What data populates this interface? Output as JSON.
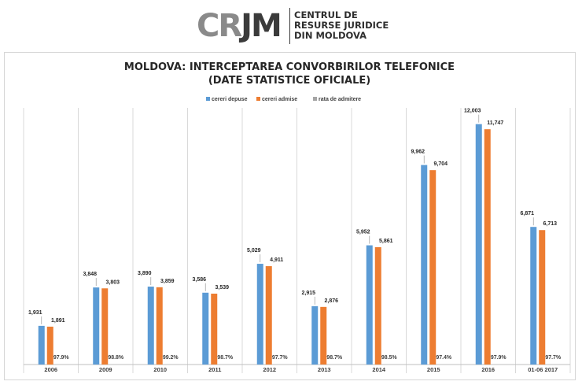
{
  "brand": {
    "mark_a": "CR",
    "mark_b": "JM",
    "name_lines": [
      "CENTRUL DE",
      "RESURSE JURIDICE",
      "DIN MOLDOVA"
    ]
  },
  "chart_data": {
    "type": "bar",
    "title_lines": [
      "MOLDOVA: INTERCEPTAREA CONVORBIRILOR TELEFONICE",
      "(DATE STATISTICE OFICIALE)"
    ],
    "categories": [
      "2006",
      "2009",
      "2010",
      "2011",
      "2012",
      "2013",
      "2014",
      "2015",
      "2016",
      "01-06 2017"
    ],
    "series": [
      {
        "name": "cereri depuse",
        "color": "#5b9bd5",
        "values": [
          1931,
          3848,
          3890,
          3586,
          5029,
          2915,
          5952,
          9962,
          12003,
          6871
        ],
        "labels": [
          "1,931",
          "3,848",
          "3,890",
          "3,586",
          "5,029",
          "2,915",
          "5,952",
          "9,962",
          "12,003",
          "6,871"
        ]
      },
      {
        "name": "cereri admise",
        "color": "#ed7d31",
        "values": [
          1891,
          3803,
          3859,
          3539,
          4911,
          2876,
          5861,
          9704,
          11747,
          6713
        ],
        "labels": [
          "1,891",
          "3,803",
          "3,859",
          "3,539",
          "4,911",
          "2,876",
          "5,861",
          "9,704",
          "11,747",
          "6,713"
        ]
      },
      {
        "name": "rata de admitere",
        "color": "#a5a5a5",
        "values": [
          97.9,
          98.8,
          99.2,
          98.7,
          97.7,
          98.7,
          98.5,
          97.4,
          97.9,
          97.7
        ],
        "labels": [
          "97.9%",
          "98.8%",
          "99.2%",
          "98.7%",
          "97.7%",
          "98.7%",
          "98.5%",
          "97.4%",
          "97.9%",
          "97.7%"
        ]
      }
    ],
    "legend_position": "top",
    "grid": "vertical category separators",
    "ylim": [
      0,
      12500
    ]
  }
}
